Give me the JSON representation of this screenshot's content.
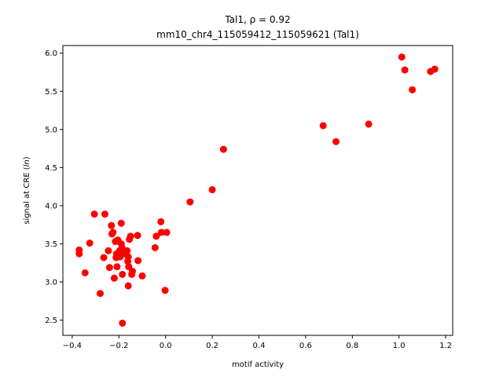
{
  "chart_data": {
    "type": "scatter",
    "title_line1": "Tal1, ρ = 0.92",
    "title_line2": "mm10_chr4_115059412_115059621 (Tal1)",
    "xlabel": "motif activity",
    "ylabel_prefix": "signal at CRE (",
    "ylabel_italic": "ln",
    "ylabel_suffix": ")",
    "xlim": [
      -0.44,
      1.23
    ],
    "ylim": [
      2.3,
      6.1
    ],
    "xticks": [
      -0.4,
      -0.2,
      0.0,
      0.2,
      0.4,
      0.6,
      0.8,
      1.0,
      1.2
    ],
    "xtick_labels": [
      "−0.4",
      "−0.2",
      "0.0",
      "0.2",
      "0.4",
      "0.6",
      "0.8",
      "1.0",
      "1.2"
    ],
    "yticks": [
      2.5,
      3.0,
      3.5,
      4.0,
      4.5,
      5.0,
      5.5,
      6.0
    ],
    "ytick_labels": [
      "2.5",
      "3.0",
      "3.5",
      "4.0",
      "4.5",
      "5.0",
      "5.5",
      "6.0"
    ],
    "marker_color": "#ff0000",
    "grid": false,
    "points": [
      {
        "x": -0.37,
        "y": 3.42
      },
      {
        "x": -0.37,
        "y": 3.37
      },
      {
        "x": -0.345,
        "y": 3.12
      },
      {
        "x": -0.325,
        "y": 3.51
      },
      {
        "x": -0.305,
        "y": 3.89
      },
      {
        "x": -0.28,
        "y": 2.85
      },
      {
        "x": -0.265,
        "y": 3.32
      },
      {
        "x": -0.26,
        "y": 3.89
      },
      {
        "x": -0.245,
        "y": 3.41
      },
      {
        "x": -0.24,
        "y": 3.19
      },
      {
        "x": -0.232,
        "y": 3.74
      },
      {
        "x": -0.23,
        "y": 3.63
      },
      {
        "x": -0.225,
        "y": 3.65
      },
      {
        "x": -0.22,
        "y": 3.05
      },
      {
        "x": -0.215,
        "y": 3.53
      },
      {
        "x": -0.212,
        "y": 3.32
      },
      {
        "x": -0.21,
        "y": 3.37
      },
      {
        "x": -0.208,
        "y": 3.2
      },
      {
        "x": -0.205,
        "y": 3.55
      },
      {
        "x": -0.2,
        "y": 3.35
      },
      {
        "x": -0.197,
        "y": 3.41
      },
      {
        "x": -0.195,
        "y": 3.33
      },
      {
        "x": -0.19,
        "y": 3.77
      },
      {
        "x": -0.19,
        "y": 3.5
      },
      {
        "x": -0.187,
        "y": 3.45
      },
      {
        "x": -0.185,
        "y": 3.1
      },
      {
        "x": -0.183,
        "y": 3.4
      },
      {
        "x": -0.18,
        "y": 3.37
      },
      {
        "x": -0.185,
        "y": 2.46
      },
      {
        "x": -0.17,
        "y": 3.38
      },
      {
        "x": -0.165,
        "y": 3.41
      },
      {
        "x": -0.162,
        "y": 3.27
      },
      {
        "x": -0.16,
        "y": 3.33
      },
      {
        "x": -0.158,
        "y": 3.2
      },
      {
        "x": -0.16,
        "y": 2.95
      },
      {
        "x": -0.155,
        "y": 3.56
      },
      {
        "x": -0.15,
        "y": 3.6
      },
      {
        "x": -0.145,
        "y": 3.1
      },
      {
        "x": -0.142,
        "y": 3.14
      },
      {
        "x": -0.12,
        "y": 3.61
      },
      {
        "x": -0.118,
        "y": 3.28
      },
      {
        "x": -0.1,
        "y": 3.08
      },
      {
        "x": -0.045,
        "y": 3.45
      },
      {
        "x": -0.04,
        "y": 3.6
      },
      {
        "x": -0.02,
        "y": 3.79
      },
      {
        "x": -0.018,
        "y": 3.65
      },
      {
        "x": -0.002,
        "y": 2.89
      },
      {
        "x": 0.005,
        "y": 3.65
      },
      {
        "x": 0.105,
        "y": 4.05
      },
      {
        "x": 0.2,
        "y": 4.21
      },
      {
        "x": 0.248,
        "y": 4.74
      },
      {
        "x": 0.675,
        "y": 5.05
      },
      {
        "x": 0.73,
        "y": 4.84
      },
      {
        "x": 0.87,
        "y": 5.07
      },
      {
        "x": 1.012,
        "y": 5.95
      },
      {
        "x": 1.025,
        "y": 5.78
      },
      {
        "x": 1.057,
        "y": 5.52
      },
      {
        "x": 1.135,
        "y": 5.76
      },
      {
        "x": 1.153,
        "y": 5.79
      }
    ]
  }
}
